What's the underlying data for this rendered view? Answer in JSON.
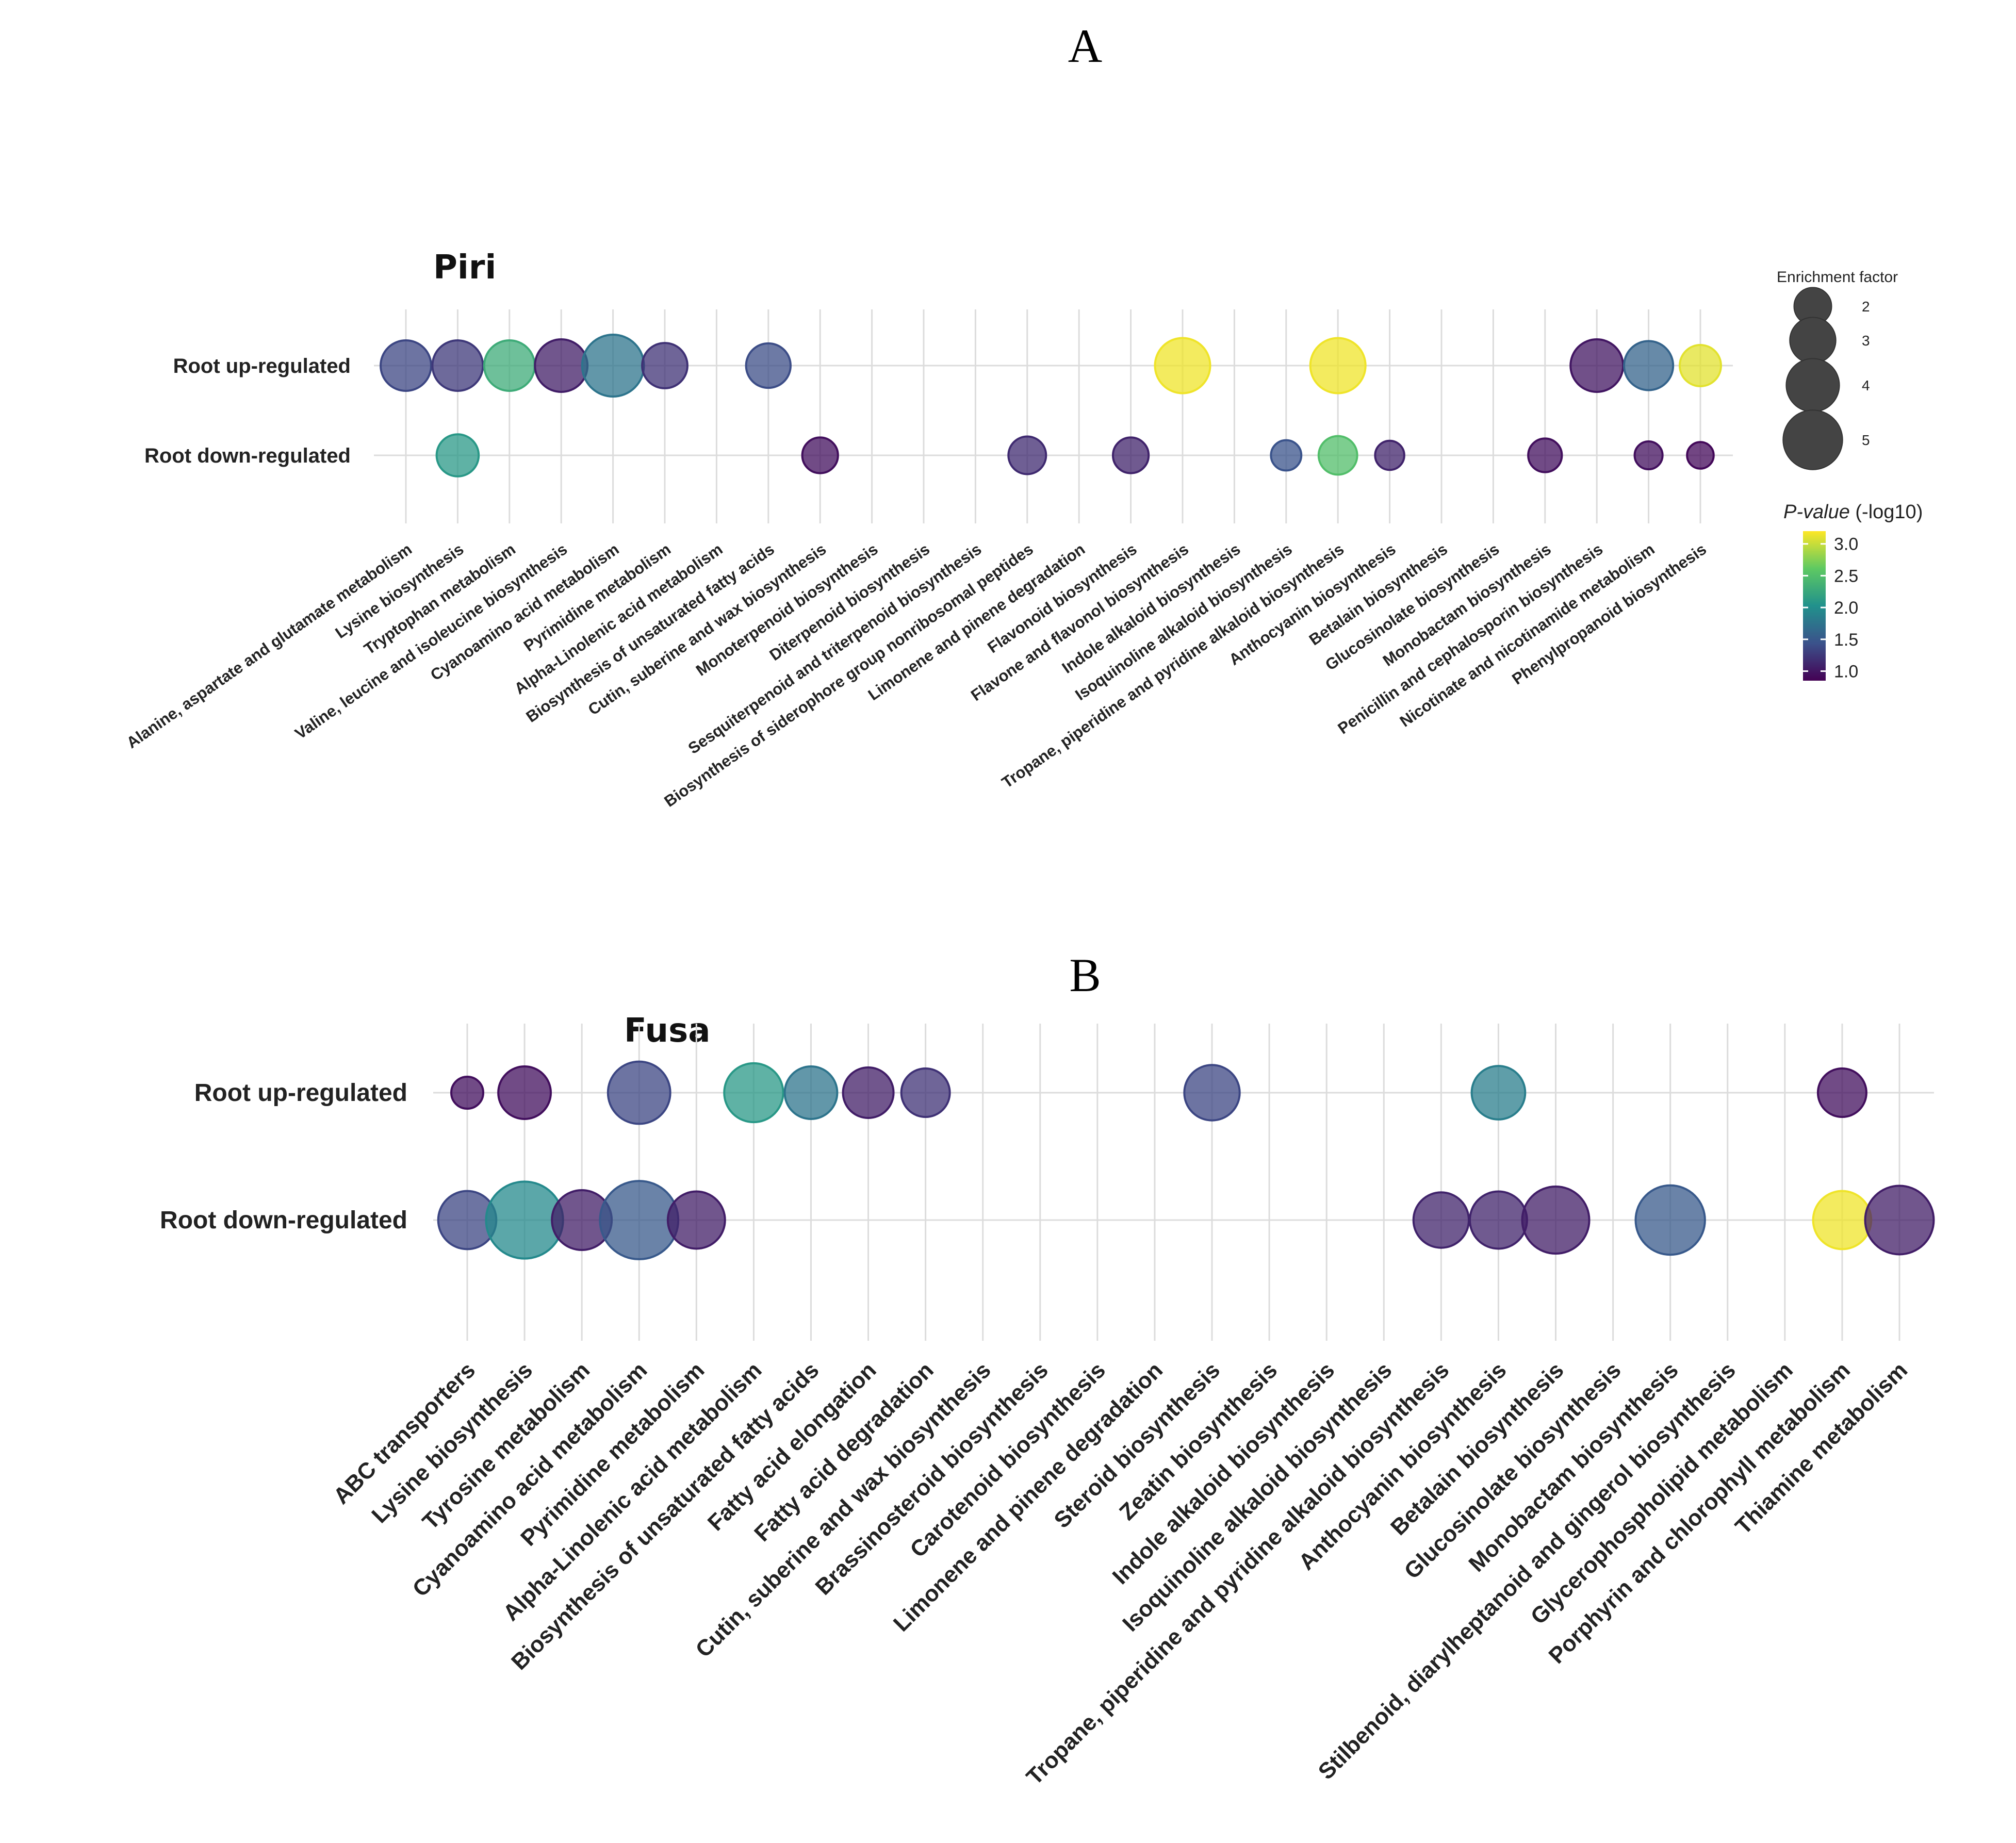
{
  "figure": {
    "panel_a_label": "A",
    "panel_b_label": "B"
  },
  "legend": {
    "size_title": "Enrichment factor",
    "size_levels": [
      2,
      3,
      4,
      5
    ],
    "color_title_italic": "P-value",
    "color_title_rest": " (-log10)",
    "color_ticks": [
      "3.0",
      "2.5",
      "2.0",
      "1.5",
      "1.0"
    ],
    "color_range": [
      0.85,
      3.2
    ],
    "palette": [
      "#440154",
      "#3b528b",
      "#21918c",
      "#5ec962",
      "#fde725"
    ]
  },
  "chart_data": [
    {
      "type": "scatter",
      "title": "Piri",
      "rows": [
        "Root up-regulated",
        "Root down-regulated"
      ],
      "categories": [
        "Alanine, aspartate and glutamate metabolism",
        "Lysine biosynthesis",
        "Tryptophan metabolism",
        "Valine, leucine and isoleucine biosynthesis",
        "Cyanoamino acid metabolism",
        "Pyrimidine metabolism",
        "Alpha-Linolenic acid metabolism",
        "Biosynthesis of unsaturated fatty acids",
        "Cutin, suberine and wax biosynthesis",
        "Monoterpenoid biosynthesis",
        "Diterpenoid biosynthesis",
        "Sesquiterpenoid and triterpenoid biosynthesis",
        "Biosynthesis of siderophore group nonribosomal peptides",
        "Limonene and pinene degradation",
        "Flavonoid biosynthesis",
        "Flavone and flavonol biosynthesis",
        "Indole alkaloid biosynthesis",
        "Isoquinoline alkaloid biosynthesis",
        "Tropane, piperidine and pyridine alkaloid biosynthesis",
        "Anthocyanin biosynthesis",
        "Betalain biosynthesis",
        "Glucosinolate biosynthesis",
        "Monobactam biosynthesis",
        "Penicillin and cephalosporin biosynthesis",
        "Nicotinate and nicotinamide metabolism",
        "Phenylpropanoid biosynthesis"
      ],
      "points": [
        {
          "row": "Root up-regulated",
          "category": "Alanine, aspartate and glutamate metabolism",
          "enrichment": 3.6,
          "neglog10p": 1.35
        },
        {
          "row": "Root up-regulated",
          "category": "Lysine biosynthesis",
          "enrichment": 3.6,
          "neglog10p": 1.25
        },
        {
          "row": "Root up-regulated",
          "category": "Tryptophan metabolism",
          "enrichment": 3.6,
          "neglog10p": 2.3
        },
        {
          "row": "Root up-regulated",
          "category": "Valine, leucine and isoleucine biosynthesis",
          "enrichment": 3.9,
          "neglog10p": 1.05
        },
        {
          "row": "Root up-regulated",
          "category": "Cyanoamino acid metabolism",
          "enrichment": 5.4,
          "neglog10p": 1.75
        },
        {
          "row": "Root up-regulated",
          "category": "Pyrimidine metabolism",
          "enrichment": 2.9,
          "neglog10p": 1.2
        },
        {
          "row": "Root up-regulated",
          "category": "Biosynthesis of unsaturated fatty acids",
          "enrichment": 2.8,
          "neglog10p": 1.4
        },
        {
          "row": "Root up-regulated",
          "category": "Flavone and flavonol biosynthesis",
          "enrichment": 4.3,
          "neglog10p": 3.15
        },
        {
          "row": "Root up-regulated",
          "category": "Tropane, piperidine and pyridine alkaloid biosynthesis",
          "enrichment": 4.3,
          "neglog10p": 3.15
        },
        {
          "row": "Root up-regulated",
          "category": "Penicillin and cephalosporin biosynthesis",
          "enrichment": 3.9,
          "neglog10p": 1.0
        },
        {
          "row": "Root up-regulated",
          "category": "Nicotinate and nicotinamide metabolism",
          "enrichment": 3.4,
          "neglog10p": 1.6
        },
        {
          "row": "Root up-regulated",
          "category": "Phenylpropanoid biosynthesis",
          "enrichment": 2.4,
          "neglog10p": 3.1
        },
        {
          "row": "Root down-regulated",
          "category": "Lysine biosynthesis",
          "enrichment": 2.5,
          "neglog10p": 2.1
        },
        {
          "row": "Root down-regulated",
          "category": "Cutin, suberine and wax biosynthesis",
          "enrichment": 1.8,
          "neglog10p": 0.95
        },
        {
          "row": "Root down-regulated",
          "category": "Biosynthesis of siderophore group nonribosomal peptides",
          "enrichment": 2.0,
          "neglog10p": 1.15
        },
        {
          "row": "Root down-regulated",
          "category": "Flavonoid biosynthesis",
          "enrichment": 1.8,
          "neglog10p": 1.1
        },
        {
          "row": "Root down-regulated",
          "category": "Isoquinoline alkaloid biosynthesis",
          "enrichment": 1.3,
          "neglog10p": 1.45
        },
        {
          "row": "Root down-regulated",
          "category": "Tropane, piperidine and pyridine alkaloid biosynthesis",
          "enrichment": 2.1,
          "neglog10p": 2.5
        },
        {
          "row": "Root down-regulated",
          "category": "Anthocyanin biosynthesis",
          "enrichment": 1.2,
          "neglog10p": 1.1
        },
        {
          "row": "Root down-regulated",
          "category": "Monobactam biosynthesis",
          "enrichment": 1.6,
          "neglog10p": 0.95
        },
        {
          "row": "Root down-regulated",
          "category": "Nicotinate and nicotinamide metabolism",
          "enrichment": 1.1,
          "neglog10p": 0.95
        },
        {
          "row": "Root down-regulated",
          "category": "Phenylpropanoid biosynthesis",
          "enrichment": 1.0,
          "neglog10p": 0.9
        }
      ]
    },
    {
      "type": "scatter",
      "title": "Fusa",
      "rows": [
        "Root up-regulated",
        "Root down-regulated"
      ],
      "categories": [
        "ABC transporters",
        "Lysine biosynthesis",
        "Tyrosine metabolism",
        "Cyanoamino acid metabolism",
        "Pyrimidine metabolism",
        "Alpha-Linolenic acid metabolism",
        "Biosynthesis of unsaturated fatty acids",
        "Fatty acid elongation",
        "Fatty acid degradation",
        "Cutin, suberine and wax biosynthesis",
        "Brassinosteroid biosynthesis",
        "Carotenoid biosynthesis",
        "Limonene and pinene degradation",
        "Steroid biosynthesis",
        "Zeatin biosynthesis",
        "Indole alkaloid biosynthesis",
        "Isoquinoline alkaloid biosynthesis",
        "Tropane, piperidine and pyridine alkaloid biosynthesis",
        "Anthocyanin biosynthesis",
        "Betalain biosynthesis",
        "Glucosinolate biosynthesis",
        "Monobactam biosynthesis",
        "Stilbenoid, diarylheptanoid and gingerol biosynthesis",
        "Glycerophospholipid metabolism",
        "Porphyrin and chlorophyll metabolism",
        "Thiamine metabolism"
      ],
      "points": [
        {
          "row": "Root up-regulated",
          "category": "ABC transporters",
          "enrichment": 1.0,
          "neglog10p": 0.95
        },
        {
          "row": "Root up-regulated",
          "category": "Lysine biosynthesis",
          "enrichment": 2.7,
          "neglog10p": 0.95
        },
        {
          "row": "Root up-regulated",
          "category": "Cyanoamino acid metabolism",
          "enrichment": 3.8,
          "neglog10p": 1.35
        },
        {
          "row": "Root up-regulated",
          "category": "Alpha-Linolenic acid metabolism",
          "enrichment": 3.4,
          "neglog10p": 2.1
        },
        {
          "row": "Root up-regulated",
          "category": "Biosynthesis of unsaturated fatty acids",
          "enrichment": 2.7,
          "neglog10p": 1.75
        },
        {
          "row": "Root up-regulated",
          "category": "Fatty acid elongation",
          "enrichment": 2.5,
          "neglog10p": 1.05
        },
        {
          "row": "Root up-regulated",
          "category": "Fatty acid degradation",
          "enrichment": 2.3,
          "neglog10p": 1.2
        },
        {
          "row": "Root up-regulated",
          "category": "Steroid biosynthesis",
          "enrichment": 3.0,
          "neglog10p": 1.35
        },
        {
          "row": "Root up-regulated",
          "category": "Anthocyanin biosynthesis",
          "enrichment": 2.8,
          "neglog10p": 1.85
        },
        {
          "row": "Root up-regulated",
          "category": "Porphyrin and chlorophyll metabolism",
          "enrichment": 2.3,
          "neglog10p": 0.95
        },
        {
          "row": "Root down-regulated",
          "category": "ABC transporters",
          "enrichment": 3.3,
          "neglog10p": 1.35
        },
        {
          "row": "Root down-regulated",
          "category": "Lysine biosynthesis",
          "enrichment": 5.8,
          "neglog10p": 1.95
        },
        {
          "row": "Root down-regulated",
          "category": "Tyrosine metabolism",
          "enrichment": 3.5,
          "neglog10p": 1.05
        },
        {
          "row": "Root down-regulated",
          "category": "Cyanoamino acid metabolism",
          "enrichment": 6.0,
          "neglog10p": 1.5
        },
        {
          "row": "Root down-regulated",
          "category": "Pyrimidine metabolism",
          "enrichment": 3.2,
          "neglog10p": 1.05
        },
        {
          "row": "Root down-regulated",
          "category": "Tropane, piperidine and pyridine alkaloid biosynthesis",
          "enrichment": 3.0,
          "neglog10p": 1.1
        },
        {
          "row": "Root down-regulated",
          "category": "Anthocyanin biosynthesis",
          "enrichment": 3.2,
          "neglog10p": 1.1
        },
        {
          "row": "Root down-regulated",
          "category": "Betalain biosynthesis",
          "enrichment": 4.4,
          "neglog10p": 1.05
        },
        {
          "row": "Root down-regulated",
          "category": "Monobactam biosynthesis",
          "enrichment": 4.7,
          "neglog10p": 1.5
        },
        {
          "row": "Root down-regulated",
          "category": "Porphyrin and chlorophyll metabolism",
          "enrichment": 3.3,
          "neglog10p": 3.15
        },
        {
          "row": "Root down-regulated",
          "category": "Thiamine metabolism",
          "enrichment": 4.6,
          "neglog10p": 1.05
        }
      ]
    }
  ]
}
